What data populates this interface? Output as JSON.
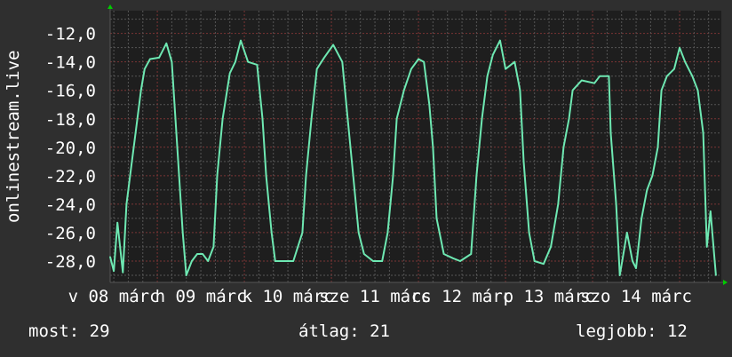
{
  "chart_data": {
    "type": "line",
    "title": "",
    "ylabel": "onlinestream.live",
    "xlabel": "",
    "ylim": [
      -29.5,
      -10.4
    ],
    "xlim": [
      "08 11:00",
      "15 11:30"
    ],
    "yticks": [
      -12,
      -14,
      -16,
      -18,
      -20,
      -22,
      -24,
      -26,
      -28
    ],
    "ytick_labels": [
      "-12,0",
      "-14,0",
      "-16,0",
      "-18,0",
      "-20,0",
      "-22,0",
      "-24,0",
      "-26,0",
      "-28,0"
    ],
    "xticks": [
      {
        "x": "08 12:00",
        "label": "v 08 márc"
      },
      {
        "x": "09 12:00",
        "label": "h 09 márc"
      },
      {
        "x": "10 12:00",
        "label": "k 10 márc"
      },
      {
        "x": "11 12:00",
        "label": "sze 11 márc"
      },
      {
        "x": "12 12:00",
        "label": "cs 12 márc"
      },
      {
        "x": "13 12:00",
        "label": "p 13 márc"
      },
      {
        "x": "14 12:00",
        "label": "szo 14 márc"
      }
    ],
    "grid": true,
    "colors": {
      "line": "#6ee8b2",
      "background": "#2f2f2f",
      "plot": "#1e1e1e",
      "major_grid": "#7a3434",
      "minor_grid": "#555555",
      "arrow": "#00cc00"
    },
    "series": [
      {
        "x": [
          "08 11:00",
          "08 12:00",
          "08 13:00",
          "08 14:30",
          "08 15:30",
          "08 17:00",
          "08 18:00",
          "08 19:30",
          "08 20:30",
          "08 22:00",
          "09 00:30",
          "09 02:30",
          "09 04:00",
          "09 05:00",
          "09 06:00",
          "09 07:00",
          "09 08:00",
          "09 09:30",
          "09 11:00",
          "09 12:30",
          "09 14:00",
          "09 15:30",
          "09 16:30",
          "09 18:00",
          "09 20:00",
          "09 21:30",
          "09 23:00",
          "10 01:00",
          "10 03:30",
          "10 05:00",
          "10 06:00",
          "10 07:30",
          "10 08:30",
          "10 11:00",
          "10 13:30",
          "10 16:00",
          "10 17:00",
          "10 18:30",
          "10 20:00",
          "10 22:00",
          "11 00:30",
          "11 03:00",
          "11 04:30",
          "11 06:00",
          "11 07:30",
          "11 09:00",
          "11 11:30",
          "11 14:00",
          "11 15:30",
          "11 17:00",
          "11 18:00",
          "11 20:00",
          "11 22:00",
          "12 00:00",
          "12 01:30",
          "12 03:00",
          "12 04:00",
          "12 05:00",
          "12 07:00",
          "12 09:30",
          "12 11:30",
          "12 14:30",
          "12 16:00",
          "12 17:30",
          "12 19:00",
          "12 20:30",
          "12 22:30",
          "13 00:00",
          "13 02:30",
          "13 04:00",
          "13 05:00",
          "13 06:30",
          "13 08:00",
          "13 10:30",
          "13 12:30",
          "13 14:30",
          "13 16:00",
          "13 17:30",
          "13 18:30",
          "13 21:00",
          "14 00:30",
          "14 02:00",
          "14 04:30",
          "14 05:00",
          "14 06:30",
          "14 07:30",
          "14 09:30",
          "14 11:00",
          "14 12:00",
          "14 13:30",
          "14 15:00",
          "14 16:30",
          "14 18:00",
          "14 19:00",
          "14 20:30",
          "14 22:30",
          "15 00:00",
          "15 01:30",
          "15 03:30",
          "15 05:00",
          "15 06:30",
          "15 07:30",
          "15 08:30",
          "15 10:00"
        ],
        "y": [
          -27.7,
          -28.7,
          -25.3,
          -28.8,
          -24,
          -21,
          -19,
          -16,
          -14.5,
          -13.8,
          -13.7,
          -12.7,
          -14,
          -18,
          -22,
          -26,
          -29,
          -28,
          -27.5,
          -27.5,
          -28,
          -27,
          -22,
          -18,
          -14.8,
          -14,
          -12.5,
          -14,
          -14.2,
          -18,
          -22,
          -26,
          -28,
          -28,
          -28,
          -26,
          -22,
          -18,
          -14.5,
          -13.7,
          -12.8,
          -14,
          -18,
          -22,
          -26,
          -27.5,
          -28,
          -28,
          -26,
          -22,
          -18,
          -16,
          -14.5,
          -13.8,
          -14,
          -17,
          -20,
          -25,
          -27.5,
          -27.8,
          -28,
          -27.5,
          -22,
          -18,
          -15,
          -13.5,
          -12.5,
          -14.5,
          -14,
          -16,
          -21,
          -26,
          -28,
          -28.2,
          -27,
          -24,
          -20,
          -18,
          -16,
          -15.3,
          -15.5,
          -15,
          -15,
          -19,
          -24,
          -29,
          -26,
          -28,
          -28.5,
          -25,
          -23,
          -22,
          -20,
          -16,
          -15,
          -14.5,
          -13,
          -14,
          -15,
          -16,
          -19,
          -27,
          -24.5,
          -29
        ]
      }
    ]
  },
  "legend": {
    "current": "most: 29",
    "average": "átlag: 21",
    "max": "legjobb: 12"
  }
}
